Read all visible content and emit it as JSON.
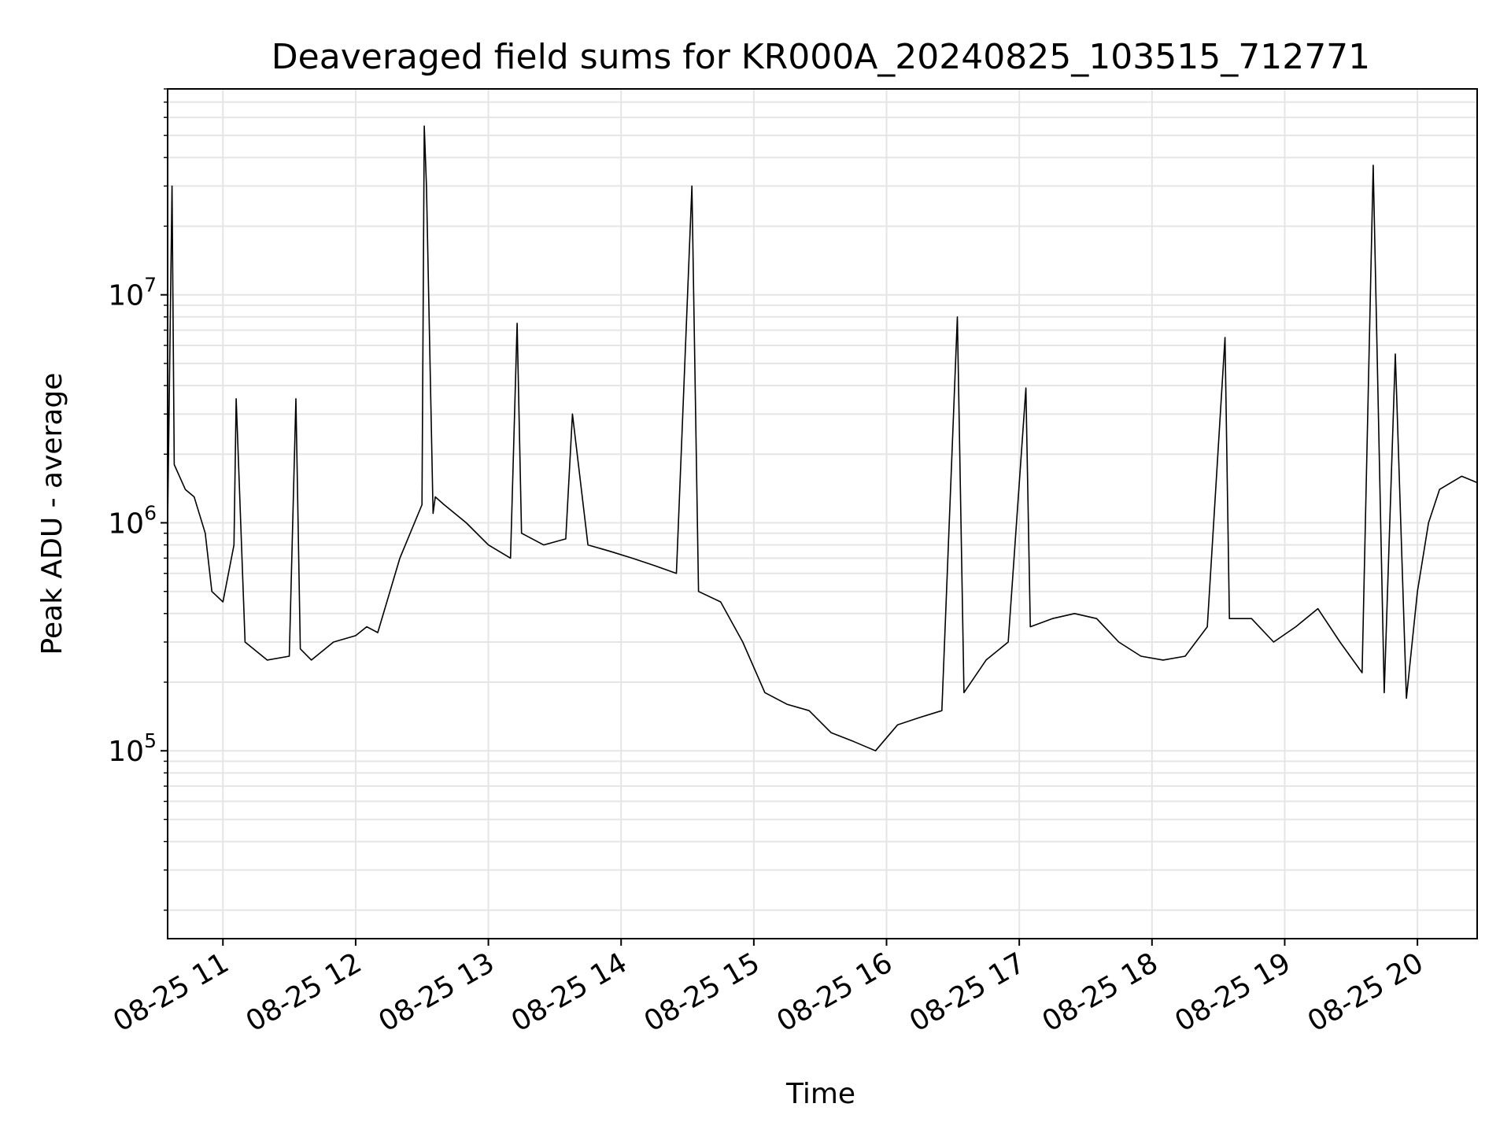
{
  "chart_data": {
    "type": "line",
    "title": "Deaveraged field sums for KR000A_20240825_103515_712771",
    "xlabel": "Time",
    "ylabel": "Peak ADU - average",
    "yscale": "log",
    "ylim": [
      15000,
      80000000
    ],
    "xlim": [
      "08-25 10:35",
      "08-25 20:27"
    ],
    "grid": true,
    "line_color": "#000000",
    "grid_color": "#e5e5e5",
    "x_ticks": [
      {
        "value": "08-25 11:00",
        "label": "08-25 11"
      },
      {
        "value": "08-25 12:00",
        "label": "08-25 12"
      },
      {
        "value": "08-25 13:00",
        "label": "08-25 13"
      },
      {
        "value": "08-25 14:00",
        "label": "08-25 14"
      },
      {
        "value": "08-25 15:00",
        "label": "08-25 15"
      },
      {
        "value": "08-25 16:00",
        "label": "08-25 16"
      },
      {
        "value": "08-25 17:00",
        "label": "08-25 17"
      },
      {
        "value": "08-25 18:00",
        "label": "08-25 18"
      },
      {
        "value": "08-25 19:00",
        "label": "08-25 19"
      },
      {
        "value": "08-25 20:00",
        "label": "08-25 20"
      }
    ],
    "y_ticks": [
      {
        "value": 100000,
        "base": "10",
        "exp": "5"
      },
      {
        "value": 1000000,
        "base": "10",
        "exp": "6"
      },
      {
        "value": 10000000,
        "base": "10",
        "exp": "7"
      }
    ],
    "series": [
      {
        "x": [
          "08-25 10:35",
          "08-25 10:37",
          "08-25 10:38",
          "08-25 10:43",
          "08-25 10:47",
          "08-25 10:52",
          "08-25 10:55",
          "08-25 11:00",
          "08-25 11:05",
          "08-25 11:06",
          "08-25 11:10",
          "08-25 11:20",
          "08-25 11:30",
          "08-25 11:33",
          "08-25 11:35",
          "08-25 11:40",
          "08-25 11:50",
          "08-25 12:00",
          "08-25 12:05",
          "08-25 12:10",
          "08-25 12:20",
          "08-25 12:30",
          "08-25 12:31",
          "08-25 12:32",
          "08-25 12:35",
          "08-25 12:36",
          "08-25 12:40",
          "08-25 12:50",
          "08-25 13:00",
          "08-25 13:10",
          "08-25 13:13",
          "08-25 13:15",
          "08-25 13:25",
          "08-25 13:35",
          "08-25 13:38",
          "08-25 13:45",
          "08-25 13:55",
          "08-25 14:05",
          "08-25 14:15",
          "08-25 14:25",
          "08-25 14:32",
          "08-25 14:35",
          "08-25 14:45",
          "08-25 14:55",
          "08-25 15:05",
          "08-25 15:15",
          "08-25 15:25",
          "08-25 15:35",
          "08-25 15:45",
          "08-25 15:55",
          "08-25 16:05",
          "08-25 16:15",
          "08-25 16:25",
          "08-25 16:32",
          "08-25 16:35",
          "08-25 16:45",
          "08-25 16:55",
          "08-25 17:03",
          "08-25 17:05",
          "08-25 17:15",
          "08-25 17:25",
          "08-25 17:35",
          "08-25 17:45",
          "08-25 17:55",
          "08-25 18:05",
          "08-25 18:15",
          "08-25 18:25",
          "08-25 18:33",
          "08-25 18:35",
          "08-25 18:45",
          "08-25 18:55",
          "08-25 19:05",
          "08-25 19:15",
          "08-25 19:25",
          "08-25 19:35",
          "08-25 19:40",
          "08-25 19:45",
          "08-25 19:50",
          "08-25 19:55",
          "08-25 20:00",
          "08-25 20:05",
          "08-25 20:10",
          "08-25 20:20",
          "08-25 20:27"
        ],
        "y": [
          1000000,
          30000000,
          1800000,
          1400000,
          1300000,
          900000,
          500000,
          450000,
          800000,
          3500000,
          300000,
          250000,
          260000,
          3500000,
          280000,
          250000,
          300000,
          320000,
          350000,
          330000,
          700000,
          1200000,
          55000000,
          30000000,
          1100000,
          1300000,
          1200000,
          1000000,
          800000,
          700000,
          7500000,
          900000,
          800000,
          850000,
          3000000,
          800000,
          750000,
          700000,
          650000,
          600000,
          30000000,
          500000,
          450000,
          300000,
          180000,
          160000,
          150000,
          120000,
          110000,
          100000,
          130000,
          140000,
          150000,
          8000000,
          180000,
          250000,
          300000,
          3900000,
          350000,
          380000,
          400000,
          380000,
          300000,
          260000,
          250000,
          260000,
          350000,
          6500000,
          380000,
          380000,
          300000,
          350000,
          420000,
          300000,
          220000,
          37000000,
          180000,
          5500000,
          170000,
          500000,
          1000000,
          1400000,
          1600000,
          1500000
        ]
      }
    ]
  }
}
